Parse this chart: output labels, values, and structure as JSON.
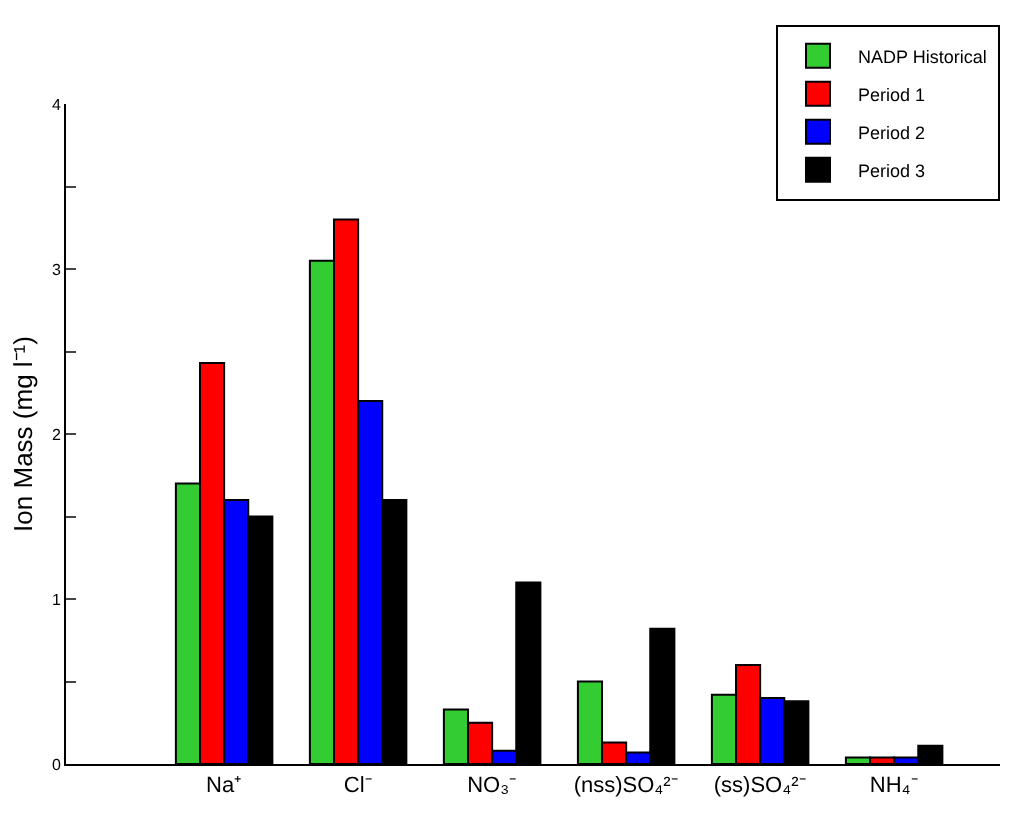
{
  "chart_data": {
    "type": "bar",
    "ylabel": "Ion Mass (mg l⁻¹)",
    "categories": [
      "Na⁺",
      "Cl⁻",
      "NO₃⁻",
      "(nss)SO₄²⁻",
      "(ss)SO₄²⁻",
      "NH₄⁻"
    ],
    "series": [
      {
        "name": "NADP Historical",
        "color": "#33cc33",
        "values": [
          1.7,
          3.05,
          0.33,
          0.5,
          0.42,
          0.04
        ]
      },
      {
        "name": "Period 1",
        "color": "#ff0000",
        "values": [
          2.43,
          3.3,
          0.25,
          0.13,
          0.6,
          0.04
        ]
      },
      {
        "name": "Period 2",
        "color": "#0000ff",
        "values": [
          1.6,
          2.2,
          0.08,
          0.07,
          0.4,
          0.04
        ]
      },
      {
        "name": "Period 3",
        "color": "#000000",
        "values": [
          1.5,
          1.6,
          1.1,
          0.82,
          0.38,
          0.11
        ]
      }
    ],
    "ylim": [
      0,
      4
    ],
    "yticks": [
      0,
      {
        "value": 0.5,
        "label": null
      },
      1,
      {
        "value": 1.5,
        "label": null
      },
      2,
      {
        "value": 2.5,
        "label": null
      },
      3,
      {
        "value": 3.5,
        "label": null
      },
      4
    ],
    "grid": false,
    "legend": "top right"
  }
}
